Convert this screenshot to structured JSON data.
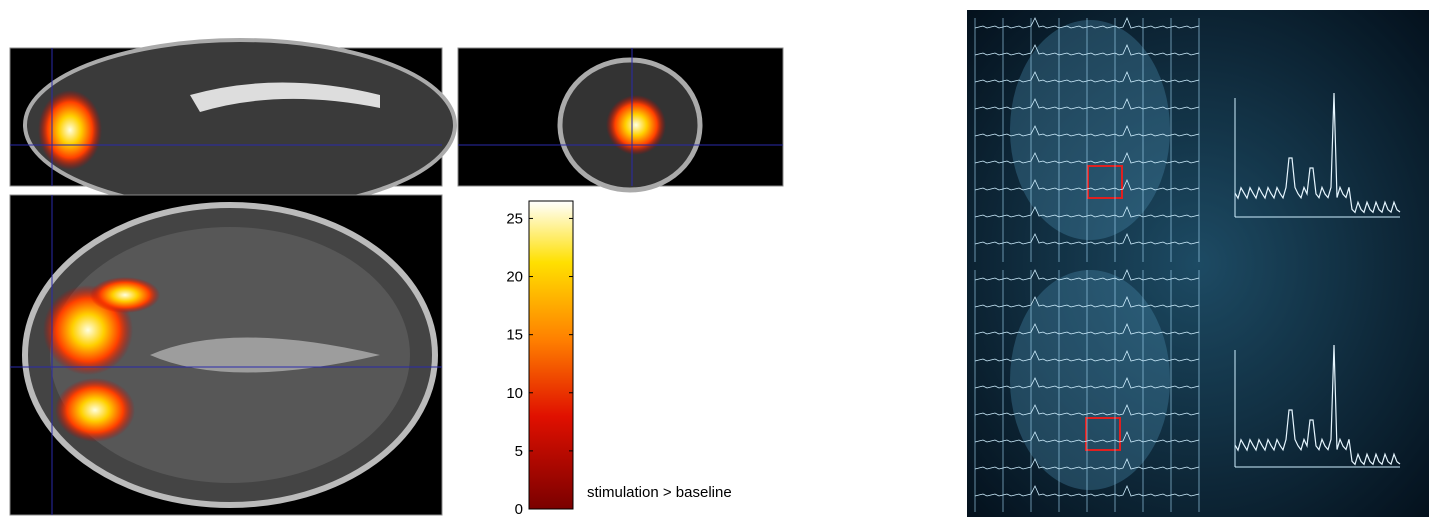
{
  "chart_data": {
    "type": "colorbar",
    "label": "stimulation > baseline",
    "ylim": [
      0,
      26.5
    ],
    "yticks": [
      0,
      5,
      10,
      15,
      20,
      25
    ]
  }
}
